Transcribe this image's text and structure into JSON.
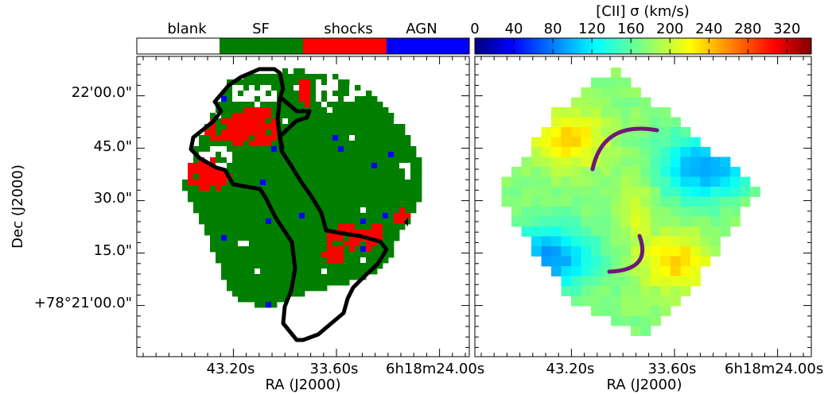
{
  "chart_data": [
    {
      "type": "heatmap",
      "panel": "left",
      "title": "",
      "xlabel": "RA (J2000)",
      "ylabel": "Dec (J2000)",
      "x_ticks": [
        "43.20s",
        "33.60s",
        "6h18m24.00s"
      ],
      "y_ticks": [
        "22'00.0\"",
        "45.0\"",
        "30.0\"",
        "15.0\"",
        "+78°21'00.0\""
      ],
      "colorbar": {
        "type": "categorical",
        "categories": [
          {
            "label": "blank",
            "color": "#ffffff"
          },
          {
            "label": "SF",
            "color": "#007f00"
          },
          {
            "label": "shocks",
            "color": "#ff0000"
          },
          {
            "label": "AGN",
            "color": "#0000ff"
          }
        ]
      }
    },
    {
      "type": "heatmap",
      "panel": "right",
      "title": "",
      "xlabel": "RA (J2000)",
      "x_ticks": [
        "43.20s",
        "33.60s",
        "6h18m24.00s"
      ],
      "colorbar": {
        "type": "continuous",
        "label": "[CII] σ (km/s)",
        "range": [
          0,
          345
        ],
        "ticks": [
          0,
          40,
          80,
          120,
          160,
          200,
          240,
          280,
          320
        ],
        "colormap": "jet",
        "range_shown": [
          95,
          240
        ]
      }
    }
  ],
  "colors": {
    "sf": "#007f00",
    "shocks": "#ff0000",
    "agn": "#0000ff",
    "outline": "#000000",
    "arc": "#6e1a78"
  }
}
